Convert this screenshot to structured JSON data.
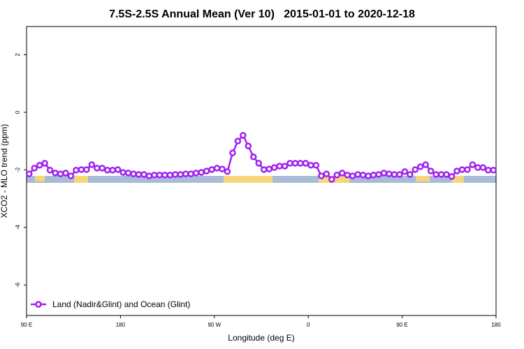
{
  "chart_data": {
    "type": "line",
    "title": "7.5S-2.5S Annual Mean (Ver 10)   2015-01-01 to 2020-12-18",
    "x_label": "Longitude (deg E)",
    "y_label": "XCO2 - MLO trend (ppm)",
    "xlim": [
      90,
      540
    ],
    "ylim": [
      -7.06,
      2.98
    ],
    "xticks": [
      {
        "value": 90,
        "label": "90 E"
      },
      180,
      {
        "value": 270,
        "label": "90 W"
      },
      {
        "value": 360,
        "label": "0"
      },
      {
        "value": 450,
        "label": "90 E"
      },
      {
        "value": 540,
        "label": "180"
      }
    ],
    "yticks": [
      -6,
      -4,
      -2,
      0,
      2
    ],
    "legend_position": "bottom-left",
    "x": [
      92.5,
      97.5,
      102.5,
      107.5,
      112.5,
      117.5,
      122.5,
      127.5,
      132.5,
      137.5,
      142.5,
      147.5,
      152.5,
      157.5,
      162.5,
      167.5,
      172.5,
      177.5,
      182.5,
      187.5,
      192.5,
      197.5,
      202.5,
      207.5,
      212.5,
      217.5,
      222.5,
      227.5,
      232.5,
      237.5,
      242.5,
      247.5,
      252.5,
      257.5,
      262.5,
      267.5,
      272.5,
      277.5,
      282.5,
      287.5,
      292.5,
      297.5,
      302.5,
      307.5,
      312.5,
      317.5,
      322.5,
      327.5,
      332.5,
      337.5,
      342.5,
      347.5,
      352.5,
      357.5,
      362.5,
      367.5,
      372.5,
      377.5,
      382.5,
      387.5,
      392.5,
      397.5,
      402.5,
      407.5,
      412.5,
      417.5,
      422.5,
      427.5,
      432.5,
      437.5,
      442.5,
      447.5,
      452.5,
      457.5,
      462.5,
      467.5,
      472.5,
      477.5,
      482.5,
      487.5,
      492.5,
      497.5,
      502.5,
      507.5,
      512.5,
      517.5,
      522.5,
      527.5,
      532.5,
      537.5
    ],
    "series": [
      {
        "name": "Land (Nadir&Glint) and Ocean (Glint)",
        "color": "#a020f0",
        "values": [
          -2.14,
          -1.94,
          -1.84,
          -1.77,
          -2.01,
          -2.11,
          -2.14,
          -2.11,
          -2.21,
          -2.01,
          -1.99,
          -1.99,
          -1.82,
          -1.94,
          -1.94,
          -2.01,
          -2.01,
          -1.99,
          -2.09,
          -2.11,
          -2.14,
          -2.16,
          -2.16,
          -2.21,
          -2.18,
          -2.18,
          -2.18,
          -2.18,
          -2.16,
          -2.16,
          -2.14,
          -2.14,
          -2.11,
          -2.09,
          -2.04,
          -1.99,
          -1.94,
          -1.97,
          -2.06,
          -1.41,
          -1.0,
          -0.8,
          -1.17,
          -1.55,
          -1.77,
          -1.99,
          -1.97,
          -1.92,
          -1.87,
          -1.87,
          -1.77,
          -1.77,
          -1.77,
          -1.77,
          -1.84,
          -1.84,
          -2.21,
          -2.14,
          -2.33,
          -2.18,
          -2.11,
          -2.18,
          -2.21,
          -2.16,
          -2.18,
          -2.21,
          -2.18,
          -2.16,
          -2.11,
          -2.14,
          -2.16,
          -2.16,
          -2.06,
          -2.16,
          -1.99,
          -1.89,
          -1.82,
          -2.04,
          -2.16,
          -2.16,
          -2.16,
          -2.23,
          -2.04,
          -1.99,
          -1.99,
          -1.82,
          -1.92,
          -1.92,
          -2.01,
          -2.01
        ]
      }
    ]
  }
}
